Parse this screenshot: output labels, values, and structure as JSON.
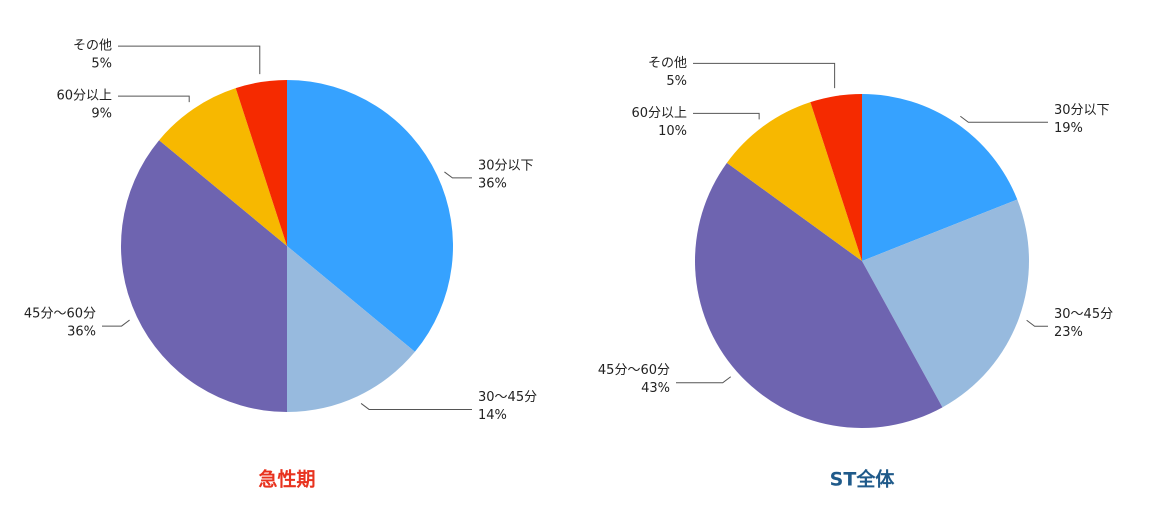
{
  "chart_data": [
    {
      "type": "pie",
      "title": "急性期",
      "title_color": "#e8331f",
      "categories": [
        "30分以下",
        "30〜45分",
        "45分〜60分",
        "60分以上",
        "その他"
      ],
      "values": [
        36,
        14,
        36,
        9,
        5
      ],
      "value_labels": [
        "36%",
        "14%",
        "36%",
        "9%",
        "5%"
      ],
      "colors": [
        "#36a2ff",
        "#97bade",
        "#6e64b0",
        "#f7b800",
        "#f52a00"
      ]
    },
    {
      "type": "pie",
      "title": "ST全体",
      "title_color": "#1f5a8a",
      "categories": [
        "30分以下",
        "30〜45分",
        "45分〜60分",
        "60分以上",
        "その他"
      ],
      "values": [
        19,
        23,
        43,
        10,
        5
      ],
      "value_labels": [
        "19%",
        "23%",
        "43%",
        "10%",
        "5%"
      ],
      "colors": [
        "#36a2ff",
        "#97bade",
        "#6e64b0",
        "#f7b800",
        "#f52a00"
      ]
    }
  ]
}
